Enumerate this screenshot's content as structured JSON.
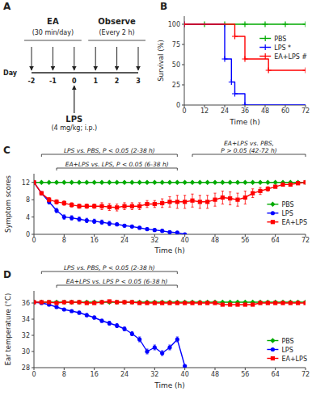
{
  "chart_data": [
    {
      "type": "timeline",
      "title": "A",
      "xlabel": "Day",
      "categories": [
        "-2",
        "-1",
        "0",
        "1",
        "2",
        "3"
      ],
      "annotations": [
        {
          "label": "EA",
          "text": "(30 min/day)",
          "from": "-2",
          "to": "0"
        },
        {
          "label": "Observe",
          "text": "(Every 2 h)",
          "from": "1",
          "to": "3"
        },
        {
          "label": "LPS",
          "text": "(4 mg/kg; i.p.)",
          "from": "0",
          "to": "0"
        }
      ]
    },
    {
      "type": "line",
      "title": "B",
      "xlabel": "Time (h)",
      "ylabel": "Survival (%)",
      "xlim": [
        0,
        72
      ],
      "ylim": [
        0,
        110
      ],
      "xticks": [
        0,
        12,
        24,
        36,
        48,
        60,
        72
      ],
      "yticks": [
        0,
        25,
        50,
        75,
        100
      ],
      "legend": "upper right",
      "series": [
        {
          "name": "PBS",
          "color": "#00aa00",
          "marker": "plus",
          "x": [
            0,
            72
          ],
          "values": [
            100,
            100
          ],
          "censor_x": [
            12,
            24,
            36,
            48,
            60,
            72
          ],
          "censor_values": [
            100,
            100,
            100,
            100,
            100,
            100
          ]
        },
        {
          "name": "LPS *",
          "color": "#0000ff",
          "marker": "plus",
          "x": [
            0,
            24,
            24,
            28,
            28,
            30,
            30,
            36,
            36,
            72
          ],
          "values": [
            100,
            100,
            57,
            57,
            28.5,
            28.5,
            14,
            14,
            0,
            0
          ],
          "censor_x": [
            0,
            24,
            28,
            30,
            36
          ],
          "censor_values": [
            100,
            57,
            28.5,
            14,
            0
          ]
        },
        {
          "name": "EA+LPS #",
          "color": "#ff0000",
          "marker": "plus",
          "x": [
            0,
            30,
            30,
            36,
            36,
            50,
            50,
            72
          ],
          "values": [
            100,
            100,
            85,
            85,
            57,
            57,
            43,
            43
          ],
          "censor_x": [
            0,
            30,
            36,
            50,
            72
          ],
          "censor_values": [
            100,
            85,
            57,
            43,
            43
          ]
        }
      ]
    },
    {
      "type": "line",
      "title": "C",
      "xlabel": "Time (h)",
      "ylabel": "Symptom scores",
      "xlim": [
        0,
        72
      ],
      "ylim": [
        0,
        14
      ],
      "xticks": [
        0,
        8,
        16,
        24,
        32,
        40,
        48,
        56,
        64,
        72
      ],
      "yticks": [
        0,
        4,
        8,
        12
      ],
      "legend": "right",
      "series": [
        {
          "name": "PBS",
          "color": "#00aa00",
          "marker": "diamond",
          "x": [
            0,
            2,
            4,
            6,
            8,
            10,
            12,
            14,
            16,
            18,
            20,
            22,
            24,
            26,
            28,
            30,
            32,
            34,
            36,
            38,
            40,
            42,
            44,
            46,
            48,
            50,
            52,
            54,
            56,
            58,
            60,
            62,
            64,
            66,
            68,
            70,
            72
          ],
          "values": [
            12,
            12,
            12,
            12,
            12,
            12,
            12,
            12,
            12,
            12,
            12,
            12,
            12,
            12,
            12,
            12,
            12,
            12,
            12,
            12,
            12,
            12,
            12,
            12,
            12,
            12,
            12,
            12,
            12,
            12,
            12,
            12,
            12,
            12,
            12,
            12,
            12
          ]
        },
        {
          "name": "LPS",
          "color": "#0000ff",
          "marker": "circle",
          "x": [
            0,
            2,
            4,
            6,
            8,
            10,
            12,
            14,
            16,
            18,
            20,
            22,
            24,
            26,
            28,
            30,
            32,
            34,
            36,
            38,
            40
          ],
          "values": [
            12,
            9.5,
            7.5,
            5.5,
            4.0,
            3.8,
            3.5,
            3.2,
            3.0,
            2.8,
            2.5,
            2.3,
            2.0,
            1.8,
            1.5,
            1.2,
            1.0,
            0.8,
            0.5,
            0.4,
            0.0
          ],
          "errors": [
            0,
            0.3,
            0.5,
            0.5,
            0.5,
            0.5,
            0.5,
            0.5,
            0.5,
            0.5,
            0.5,
            0.3,
            0.3,
            0.3,
            0.3,
            0.3,
            0.3,
            0.3,
            0.3,
            0.2,
            0.0
          ]
        },
        {
          "name": "EA+LPS",
          "color": "#ff0000",
          "marker": "square",
          "x": [
            0,
            2,
            4,
            6,
            8,
            10,
            12,
            14,
            16,
            18,
            20,
            22,
            24,
            26,
            28,
            30,
            32,
            34,
            36,
            38,
            40,
            42,
            44,
            46,
            48,
            50,
            52,
            54,
            56,
            58,
            60,
            62,
            64,
            66,
            68,
            70,
            72
          ],
          "values": [
            12,
            9.5,
            8.0,
            7.5,
            7.2,
            6.8,
            6.5,
            6.5,
            6.5,
            6.5,
            6.3,
            6.2,
            6.5,
            6.5,
            6.5,
            7.0,
            7.0,
            7.2,
            7.5,
            7.5,
            7.5,
            7.8,
            7.5,
            7.5,
            8.0,
            8.5,
            8.3,
            8.0,
            8.5,
            9.5,
            10.0,
            10.5,
            11.0,
            11.5,
            11.5,
            11.8,
            12.0
          ],
          "errors": [
            0,
            0.3,
            0.5,
            0.5,
            0.5,
            0.5,
            0.5,
            0.5,
            0.5,
            0.8,
            0.8,
            0.8,
            0.8,
            0.8,
            0.8,
            0.8,
            0.8,
            1.0,
            1.2,
            1.5,
            1.5,
            1.5,
            1.5,
            1.5,
            1.5,
            1.5,
            1.5,
            1.5,
            1.5,
            1.0,
            0.8,
            0.5,
            0.3,
            0.3,
            0.3,
            0.3,
            0.2
          ]
        }
      ],
      "annotations": [
        {
          "text": "LPS vs. PBS, P < 0.05 (2-38 h)",
          "x": [
            2,
            38
          ]
        },
        {
          "text": "EA+LPS vs. LPS, P < 0.05 (6-38 h)",
          "x": [
            6,
            38
          ]
        },
        {
          "text": "EA+LPS vs. PBS,\nP > 0.05 (42-72 h)",
          "x": [
            42,
            72
          ]
        }
      ]
    },
    {
      "type": "line",
      "title": "D",
      "xlabel": "Time (h)",
      "ylabel": "Ear temperature (°C)",
      "xlim": [
        0,
        72
      ],
      "ylim": [
        28,
        37.5
      ],
      "xticks": [
        0,
        8,
        16,
        24,
        32,
        40,
        48,
        56,
        64,
        72
      ],
      "yticks": [
        28,
        30,
        32,
        34,
        36
      ],
      "legend": "lower right",
      "series": [
        {
          "name": "PBS",
          "color": "#00aa00",
          "marker": "diamond",
          "x": [
            0,
            2,
            4,
            6,
            8,
            10,
            12,
            14,
            16,
            18,
            20,
            22,
            24,
            26,
            28,
            30,
            32,
            34,
            36,
            38,
            40,
            42,
            44,
            46,
            48,
            50,
            52,
            54,
            56,
            58,
            60,
            62,
            64,
            66,
            68,
            70,
            72
          ],
          "values": [
            36.1,
            36.1,
            36.1,
            36.1,
            36.1,
            36.1,
            36.1,
            36.1,
            36.1,
            36.1,
            36.1,
            36.1,
            36.1,
            36.1,
            36.1,
            36.1,
            36.1,
            36.1,
            36.1,
            36.1,
            36.1,
            36.1,
            36.1,
            36.1,
            36.1,
            36.1,
            36.1,
            36.1,
            36.1,
            36.1,
            36.1,
            36.1,
            36.1,
            36.1,
            36.1,
            36.1,
            36.1
          ]
        },
        {
          "name": "LPS",
          "color": "#0000ff",
          "marker": "circle",
          "x": [
            0,
            2,
            4,
            6,
            8,
            10,
            12,
            14,
            16,
            18,
            20,
            22,
            24,
            26,
            28,
            30,
            32,
            34,
            36,
            38,
            40
          ],
          "values": [
            36.1,
            36.0,
            35.8,
            35.5,
            35.2,
            35.0,
            34.8,
            34.5,
            34.2,
            33.8,
            33.5,
            33.2,
            32.8,
            32.2,
            31.5,
            30.0,
            30.5,
            29.8,
            30.5,
            31.5,
            28.2
          ],
          "errors": [
            0.1,
            0.1,
            0.15,
            0.15,
            0.15,
            0.15,
            0.2,
            0.2,
            0.2,
            0.2,
            0.25,
            0.25,
            0.25,
            0.25,
            0.3,
            0.3,
            0.3,
            0.3,
            0.3,
            0.3,
            0.0
          ]
        },
        {
          "name": "EA+LPS",
          "color": "#ff0000",
          "marker": "square",
          "x": [
            0,
            2,
            4,
            6,
            8,
            10,
            12,
            14,
            16,
            18,
            20,
            22,
            24,
            26,
            28,
            30,
            32,
            34,
            36,
            38,
            40,
            42,
            44,
            46,
            48,
            50,
            52,
            54,
            56,
            58,
            60,
            62,
            64,
            66,
            68,
            70,
            72
          ],
          "values": [
            36.1,
            36.1,
            36.1,
            36.0,
            36.1,
            36.1,
            36.1,
            36.0,
            36.0,
            36.1,
            36.2,
            36.1,
            36.1,
            36.1,
            36.0,
            36.0,
            36.0,
            36.0,
            36.0,
            36.0,
            36.0,
            36.0,
            36.0,
            36.0,
            36.0,
            35.8,
            35.8,
            35.8,
            35.8,
            35.8,
            36.0,
            36.0,
            36.0,
            36.0,
            36.0,
            36.0,
            36.0
          ],
          "errors": [
            0.1,
            0.1,
            0.1,
            0.1,
            0.1,
            0.1,
            0.1,
            0.1,
            0.1,
            0.1,
            0.1,
            0.1,
            0.1,
            0.1,
            0.1,
            0.1,
            0.1,
            0.1,
            0.1,
            0.1,
            0.1,
            0.1,
            0.1,
            0.1,
            0.1,
            0.1,
            0.1,
            0.1,
            0.1,
            0.1,
            0.1,
            0.1,
            0.1,
            0.1,
            0.1,
            0.1,
            0.1
          ]
        }
      ],
      "annotations": [
        {
          "text": "LPS vs. PBS, P < 0.05 (2-38 h)",
          "x": [
            2,
            38
          ]
        },
        {
          "text": "EA+LPS vs. LPS P < 0.05 (6-38 h)",
          "x": [
            6,
            38
          ]
        }
      ]
    }
  ]
}
